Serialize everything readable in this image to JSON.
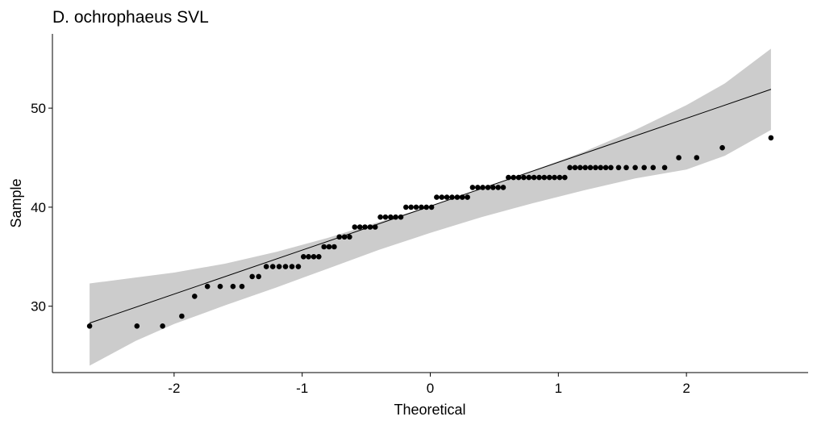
{
  "chart_data": {
    "type": "scatter",
    "title": "D. ochrophaeus SVL",
    "xlabel": "Theoretical",
    "ylabel": "Sample",
    "xlim": [
      -2.95,
      2.95
    ],
    "ylim": [
      23.3,
      57.5
    ],
    "x_ticks": [
      -2,
      -1,
      0,
      1,
      2
    ],
    "x_tick_labels": [
      "-2",
      "-1",
      "0",
      "1",
      "2"
    ],
    "y_ticks": [
      30,
      40,
      50
    ],
    "y_tick_labels": [
      "30",
      "40",
      "50"
    ],
    "grid": false,
    "legend": "none",
    "point_color": "#000000",
    "band_color": "#cccccc",
    "line_color": "#000000",
    "reference_line": {
      "x": [
        -2.66,
        2.66
      ],
      "y": [
        28.3,
        51.9
      ]
    },
    "confidence_band": {
      "x": [
        -2.66,
        -2.3,
        -2.0,
        -1.6,
        -1.2,
        -0.8,
        -0.4,
        0.0,
        0.4,
        0.8,
        1.2,
        1.6,
        2.0,
        2.3,
        2.66
      ],
      "upper": [
        32.3,
        32.9,
        33.4,
        34.3,
        35.5,
        36.9,
        38.5,
        40.1,
        41.9,
        43.7,
        45.6,
        47.8,
        50.3,
        52.5,
        56.0
      ],
      "lower": [
        24.0,
        26.5,
        28.2,
        30.1,
        31.9,
        33.8,
        35.7,
        37.4,
        39.0,
        40.4,
        41.7,
        42.9,
        43.8,
        45.2,
        47.8
      ]
    },
    "points": {
      "x": [
        -2.66,
        -2.29,
        -2.09,
        -1.94,
        -1.84,
        -1.74,
        -1.64,
        -1.54,
        -1.47,
        -1.39,
        -1.34,
        -1.28,
        -1.23,
        -1.18,
        -1.13,
        -1.08,
        -1.03,
        -0.99,
        -0.95,
        -0.91,
        -0.87,
        -0.83,
        -0.79,
        -0.75,
        -0.71,
        -0.67,
        -0.63,
        -0.59,
        -0.55,
        -0.51,
        -0.47,
        -0.43,
        -0.39,
        -0.35,
        -0.31,
        -0.27,
        -0.23,
        -0.19,
        -0.15,
        -0.11,
        -0.07,
        -0.03,
        0.01,
        0.05,
        0.09,
        0.13,
        0.17,
        0.21,
        0.25,
        0.29,
        0.33,
        0.37,
        0.41,
        0.45,
        0.49,
        0.53,
        0.57,
        0.61,
        0.65,
        0.69,
        0.73,
        0.77,
        0.81,
        0.85,
        0.89,
        0.93,
        0.97,
        1.01,
        1.05,
        1.09,
        1.13,
        1.17,
        1.21,
        1.25,
        1.29,
        1.33,
        1.37,
        1.41,
        1.47,
        1.53,
        1.6,
        1.67,
        1.74,
        1.83,
        1.94,
        2.08,
        2.28,
        2.66
      ],
      "y": [
        28,
        28,
        28,
        29,
        31,
        32,
        32,
        32,
        32,
        33,
        33,
        34,
        34,
        34,
        34,
        34,
        34,
        35,
        35,
        35,
        35,
        36,
        36,
        36,
        37,
        37,
        37,
        38,
        38,
        38,
        38,
        38,
        39,
        39,
        39,
        39,
        39,
        40,
        40,
        40,
        40,
        40,
        40,
        41,
        41,
        41,
        41,
        41,
        41,
        41,
        42,
        42,
        42,
        42,
        42,
        42,
        42,
        43,
        43,
        43,
        43,
        43,
        43,
        43,
        43,
        43,
        43,
        43,
        43,
        44,
        44,
        44,
        44,
        44,
        44,
        44,
        44,
        44,
        44,
        44,
        44,
        44,
        44,
        44,
        45,
        45,
        46,
        47
      ]
    }
  }
}
